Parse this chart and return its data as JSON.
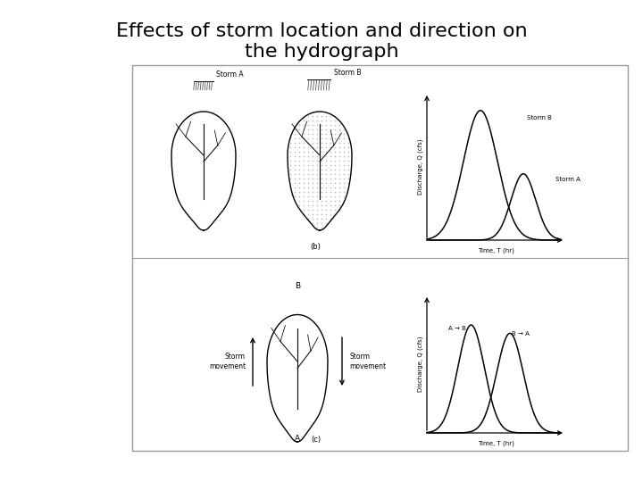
{
  "title_line1": "Effects of storm location and direction on",
  "title_line2": "the hydrograph",
  "title_fontsize": 16,
  "background_color": "#ffffff",
  "line_color": "#000000",
  "storm_a_label": "Storm A",
  "storm_b_label": "Storm B",
  "time_label": "Time, T (hr)",
  "discharge_label": "Discharge, Q (cfs)",
  "storm_movement_label": "Storm\nmovement",
  "a_to_b_label": "A → B",
  "b_to_a_label": "B → A",
  "label_b_tag": "B",
  "label_a_tag": "A",
  "subfig_a": "(b)",
  "subfig_b": "(c)"
}
